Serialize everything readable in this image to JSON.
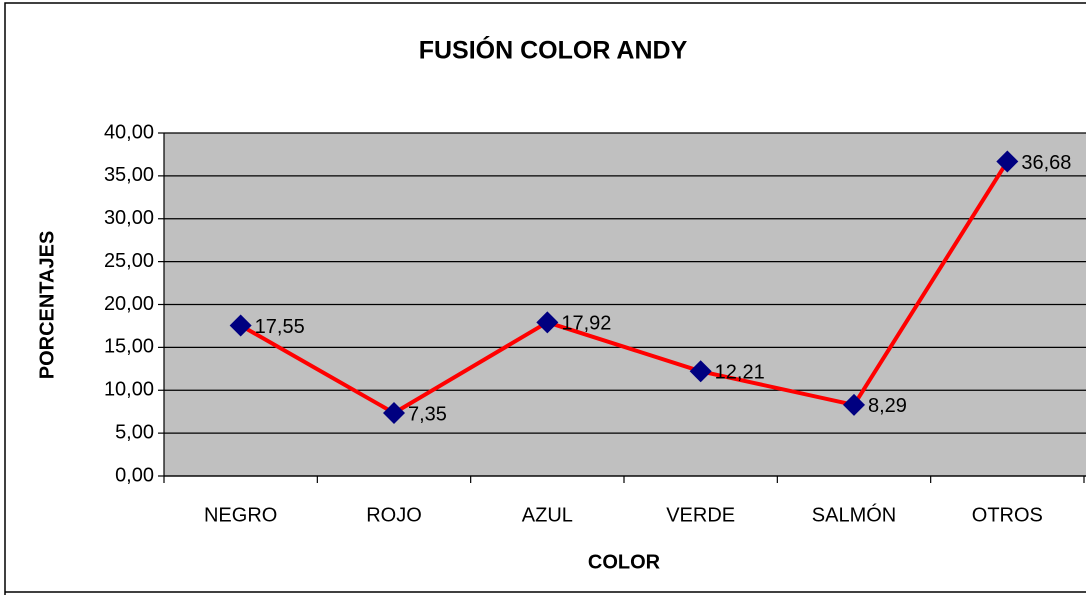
{
  "chart_data": {
    "type": "line",
    "title": "FUSIÓN COLOR ANDY",
    "x_label": "COLOR",
    "y_label": "PORCENTAJES",
    "categories": [
      "NEGRO",
      "ROJO",
      "AZUL",
      "VERDE",
      "SALMÓN",
      "OTROS"
    ],
    "series": [
      {
        "name": "FUSIÓN COLOR ANDY",
        "color": "#ff0000",
        "marker_color": "#000080",
        "values": [
          17.55,
          7.35,
          17.92,
          12.21,
          8.29,
          36.68
        ],
        "value_labels": [
          "17,55",
          "7,35",
          "17,92",
          "12,21",
          "8,29",
          "36,68"
        ]
      }
    ],
    "ylim": [
      0,
      40
    ],
    "yticks": [
      {
        "value": 0,
        "label": "0,00"
      },
      {
        "value": 5,
        "label": "5,00"
      },
      {
        "value": 10,
        "label": "10,00"
      },
      {
        "value": 15,
        "label": "15,00"
      },
      {
        "value": 20,
        "label": "20,00"
      },
      {
        "value": 25,
        "label": "25,00"
      },
      {
        "value": 30,
        "label": "30,00"
      },
      {
        "value": 35,
        "label": "35,00"
      },
      {
        "value": 40,
        "label": "40,00"
      }
    ],
    "grid": true
  }
}
